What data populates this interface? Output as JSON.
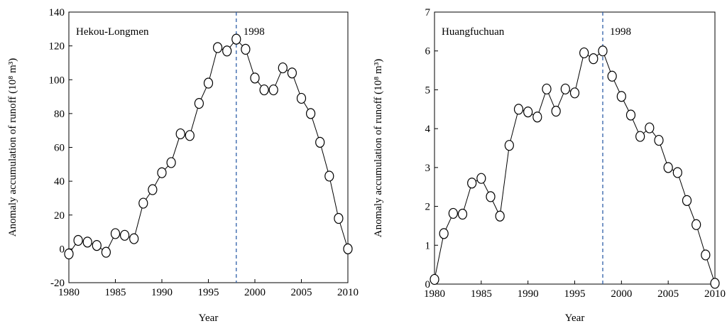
{
  "chart_data": [
    {
      "type": "line",
      "annotation": "Hekou-Longmen",
      "xlabel": "Year",
      "ylabel": "Anomaly accumulation of runoff (10⁸ m³)",
      "x": [
        1980,
        1981,
        1982,
        1983,
        1984,
        1985,
        1986,
        1987,
        1988,
        1989,
        1990,
        1991,
        1992,
        1993,
        1994,
        1995,
        1996,
        1997,
        1998,
        1999,
        2000,
        2001,
        2002,
        2003,
        2004,
        2005,
        2006,
        2007,
        2008,
        2009,
        2010
      ],
      "series": [
        {
          "color": "#000000",
          "values": [
            -3,
            5,
            4,
            2,
            -2,
            9,
            8,
            6,
            27,
            35,
            45,
            51,
            68,
            67,
            86,
            98,
            119,
            117,
            124,
            118,
            101,
            94,
            94,
            107,
            104,
            89,
            80,
            63,
            43,
            18,
            0
          ]
        }
      ],
      "xlim": [
        1980,
        2010
      ],
      "xticks": [
        1980,
        1985,
        1990,
        1995,
        2000,
        2005,
        2010
      ],
      "ylim": [
        -20,
        140
      ],
      "yticks": [
        -20,
        0,
        20,
        40,
        60,
        80,
        100,
        120,
        140
      ],
      "reference_line": 1998,
      "reference_color": "#2e5fa8"
    },
    {
      "type": "line",
      "annotation": "Huangfuchuan",
      "xlabel": "Year",
      "ylabel": "Anomaly accumulation of runoff (10⁸ m³)",
      "x": [
        1980,
        1981,
        1982,
        1983,
        1984,
        1985,
        1986,
        1987,
        1988,
        1989,
        1990,
        1991,
        1992,
        1993,
        1994,
        1995,
        1996,
        1997,
        1998,
        1999,
        2000,
        2001,
        2002,
        2003,
        2004,
        2005,
        2006,
        2007,
        2008,
        2009,
        2010
      ],
      "series": [
        {
          "color": "#000000",
          "values": [
            0.12,
            1.3,
            1.82,
            1.8,
            2.6,
            2.72,
            2.25,
            1.75,
            3.57,
            4.5,
            4.43,
            4.3,
            5.02,
            4.45,
            5.02,
            4.92,
            5.95,
            5.8,
            6.0,
            5.35,
            4.83,
            4.35,
            3.8,
            4.02,
            3.7,
            3.0,
            2.87,
            2.15,
            1.53,
            0.75,
            0.02
          ]
        }
      ],
      "xlim": [
        1980,
        2010
      ],
      "xticks": [
        1980,
        1985,
        1990,
        1995,
        2000,
        2005,
        2010
      ],
      "ylim": [
        0,
        7
      ],
      "yticks": [
        0,
        1,
        2,
        3,
        4,
        5,
        6,
        7
      ],
      "reference_line": 1998,
      "reference_color": "#2e5fa8"
    }
  ]
}
